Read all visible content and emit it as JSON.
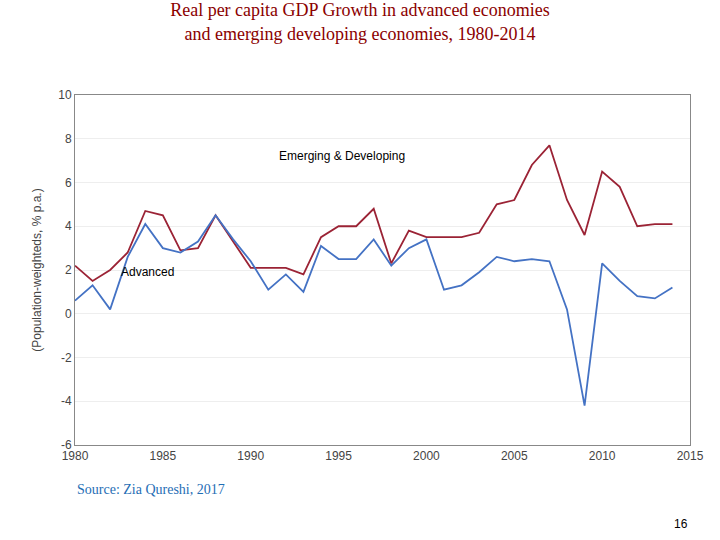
{
  "chart_data": {
    "type": "line",
    "title": "Real per capita GDP Growth in advanced economies",
    "subtitle": "and emerging developing economies, 1980-2014",
    "y_label": "(Population-weighteds, % p.a.)",
    "x": [
      1980,
      1981,
      1982,
      1983,
      1984,
      1985,
      1986,
      1987,
      1988,
      1989,
      1990,
      1991,
      1992,
      1993,
      1994,
      1995,
      1996,
      1997,
      1998,
      1999,
      2000,
      2001,
      2002,
      2003,
      2004,
      2005,
      2006,
      2007,
      2008,
      2009,
      2010,
      2011,
      2012,
      2013,
      2014
    ],
    "series": [
      {
        "name": "Emerging & Developing",
        "color": "#9B2335",
        "values": [
          2.2,
          1.5,
          2.0,
          2.8,
          4.7,
          4.5,
          2.9,
          3.0,
          4.5,
          3.3,
          2.1,
          2.1,
          2.1,
          1.8,
          3.5,
          4.0,
          4.0,
          4.8,
          2.3,
          3.8,
          3.5,
          3.5,
          3.5,
          3.7,
          5.0,
          5.2,
          6.8,
          7.7,
          5.2,
          3.6,
          6.5,
          5.8,
          4.0,
          4.1,
          4.1
        ]
      },
      {
        "name": "Advanced",
        "color": "#4472C4",
        "values": [
          0.6,
          1.3,
          0.2,
          2.6,
          4.1,
          3.0,
          2.8,
          3.3,
          4.5,
          3.4,
          2.4,
          1.1,
          1.8,
          1.0,
          3.1,
          2.5,
          2.5,
          3.4,
          2.2,
          3.0,
          3.4,
          1.1,
          1.3,
          1.9,
          2.6,
          2.4,
          2.5,
          2.4,
          0.2,
          -4.2,
          2.3,
          1.5,
          0.8,
          0.7,
          1.2
        ]
      }
    ],
    "xlim": [
      1980,
      2015
    ],
    "ylim": [
      -6,
      10
    ],
    "xticks": [
      1980,
      1985,
      1990,
      1995,
      2000,
      2005,
      2010,
      2015
    ],
    "yticks": [
      -6,
      -4,
      -2,
      0,
      2,
      4,
      6,
      8,
      10
    ],
    "grid": "y",
    "annotations": [
      {
        "text": "Emerging & Developing",
        "x": 1991.5,
        "y": 6.8
      },
      {
        "text": "Advanced",
        "x": 1982.5,
        "y": 1.5
      },
      {
        "text": "Source: Zia Qureshi, 2017"
      },
      {
        "text": "16"
      }
    ]
  }
}
